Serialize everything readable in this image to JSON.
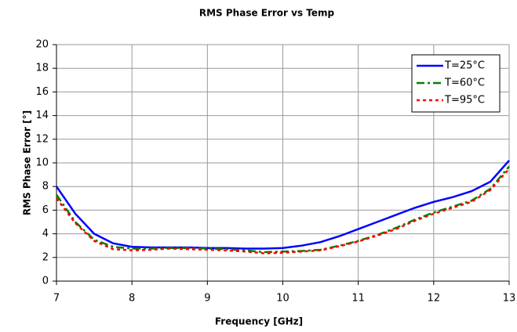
{
  "chart_data": {
    "type": "line",
    "title": "RMS Phase Error vs Temp",
    "x_label": "Frequency [GHz]",
    "y_label": "RMS Phase Error [°]",
    "x": [
      7,
      7.25,
      7.5,
      7.75,
      8,
      8.25,
      8.5,
      8.75,
      9,
      9.25,
      9.5,
      9.75,
      10,
      10.25,
      10.5,
      10.75,
      11,
      11.25,
      11.5,
      11.75,
      12,
      12.25,
      12.5,
      12.75,
      13
    ],
    "series": [
      {
        "name": "T=25°C",
        "color": "#0000ff",
        "dash": "solid",
        "values": [
          8.0,
          5.7,
          4.0,
          3.2,
          2.9,
          2.85,
          2.85,
          2.85,
          2.8,
          2.8,
          2.75,
          2.75,
          2.8,
          3.0,
          3.3,
          3.8,
          4.4,
          5.0,
          5.6,
          6.2,
          6.7,
          7.1,
          7.6,
          8.4,
          10.2
        ]
      },
      {
        "name": "T=60°C",
        "color": "#008000",
        "dash": "dashdot",
        "values": [
          7.3,
          5.0,
          3.5,
          2.9,
          2.75,
          2.75,
          2.8,
          2.8,
          2.75,
          2.7,
          2.6,
          2.45,
          2.5,
          2.55,
          2.65,
          3.0,
          3.4,
          3.9,
          4.5,
          5.2,
          5.8,
          6.3,
          6.8,
          7.8,
          9.7
        ]
      },
      {
        "name": "T=95°C",
        "color": "#ff0000",
        "dash": "dotted",
        "values": [
          7.0,
          4.9,
          3.4,
          2.7,
          2.6,
          2.65,
          2.75,
          2.7,
          2.65,
          2.6,
          2.5,
          2.35,
          2.4,
          2.5,
          2.6,
          2.95,
          3.35,
          3.85,
          4.4,
          5.1,
          5.7,
          6.2,
          6.7,
          7.7,
          9.5
        ]
      }
    ],
    "xlim": [
      7,
      13
    ],
    "xticks": [
      7,
      8,
      9,
      10,
      11,
      12,
      13
    ],
    "ylim": [
      0,
      20
    ],
    "yticks": [
      0,
      2,
      4,
      6,
      8,
      10,
      12,
      14,
      16,
      18,
      20
    ],
    "grid": true,
    "legend": "upper right"
  }
}
